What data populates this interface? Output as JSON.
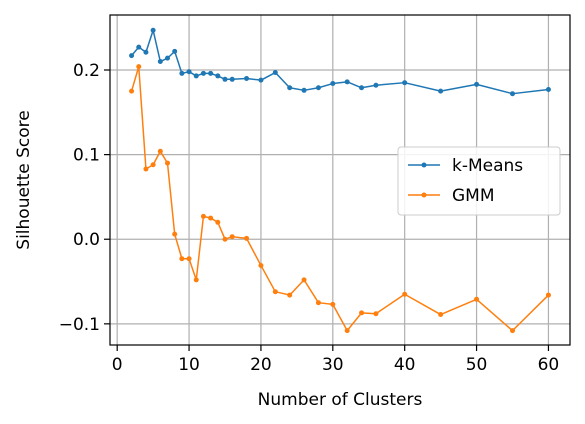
{
  "chart_data": {
    "type": "line",
    "title": "",
    "xlabel": "Number of Clusters",
    "ylabel": "Silhouette Score",
    "xlim": [
      -1,
      63
    ],
    "ylim": [
      -0.125,
      0.265
    ],
    "xticks": [
      0,
      10,
      20,
      30,
      40,
      50,
      60
    ],
    "xtick_labels": [
      "0",
      "10",
      "20",
      "30",
      "40",
      "50",
      "60"
    ],
    "yticks": [
      -0.1,
      0.0,
      0.1,
      0.2
    ],
    "ytick_labels": [
      "−0.1",
      "0.0",
      "0.1",
      "0.2"
    ],
    "grid": true,
    "legend_position": "center-right",
    "series": [
      {
        "name": "k-Means",
        "color": "#1f77b4",
        "x": [
          2,
          3,
          4,
          5,
          6,
          7,
          8,
          9,
          10,
          11,
          12,
          13,
          14,
          15,
          16,
          18,
          20,
          22,
          24,
          26,
          28,
          30,
          32,
          34,
          36,
          40,
          45,
          50,
          55,
          60
        ],
        "y": [
          0.217,
          0.227,
          0.221,
          0.247,
          0.21,
          0.214,
          0.222,
          0.196,
          0.198,
          0.193,
          0.196,
          0.196,
          0.193,
          0.189,
          0.189,
          0.19,
          0.188,
          0.197,
          0.179,
          0.176,
          0.179,
          0.184,
          0.186,
          0.179,
          0.182,
          0.185,
          0.175,
          0.183,
          0.172,
          0.177
        ]
      },
      {
        "name": "GMM",
        "color": "#ff7f0e",
        "x": [
          2,
          3,
          4,
          5,
          6,
          7,
          8,
          9,
          10,
          11,
          12,
          13,
          14,
          15,
          16,
          18,
          20,
          22,
          24,
          26,
          28,
          30,
          32,
          34,
          36,
          40,
          45,
          50,
          55,
          60
        ],
        "y": [
          0.175,
          0.204,
          0.083,
          0.088,
          0.104,
          0.09,
          0.006,
          -0.023,
          -0.023,
          -0.048,
          0.027,
          0.025,
          0.02,
          0.0,
          0.003,
          0.001,
          -0.031,
          -0.062,
          -0.066,
          -0.048,
          -0.075,
          -0.077,
          -0.108,
          -0.087,
          -0.088,
          -0.065,
          -0.089,
          -0.071,
          -0.108,
          -0.066
        ]
      }
    ]
  }
}
